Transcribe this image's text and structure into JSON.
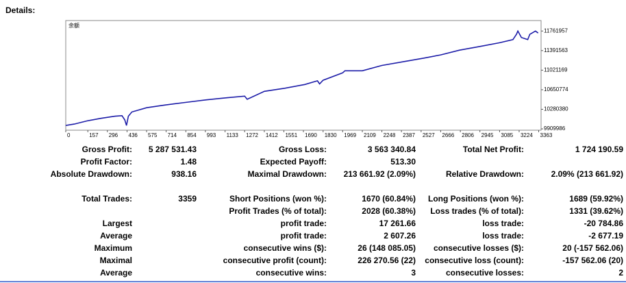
{
  "details_label": "Details:",
  "chart_data": {
    "type": "line",
    "label": "余额",
    "series": [
      {
        "color": "#1c1ca8",
        "x": [
          0,
          60,
          150,
          250,
          350,
          400,
          420,
          432,
          445,
          470,
          575,
          700,
          850,
          1000,
          1150,
          1272,
          1290,
          1412,
          1560,
          1700,
          1790,
          1805,
          1830,
          1969,
          1985,
          2109,
          2248,
          2400,
          2550,
          2666,
          2800,
          2945,
          3085,
          3180,
          3205,
          3215,
          3240,
          3285,
          3300,
          3340,
          3359
        ],
        "values": [
          9975000,
          10000000,
          10060000,
          10110000,
          10150000,
          10160000,
          10080000,
          9975000,
          10150000,
          10230000,
          10310000,
          10360000,
          10410000,
          10460000,
          10500000,
          10530000,
          10470000,
          10620000,
          10680000,
          10750000,
          10820000,
          10760000,
          10830000,
          10970000,
          11010000,
          11010000,
          11110000,
          11180000,
          11250000,
          11310000,
          11400000,
          11470000,
          11540000,
          11600000,
          11700000,
          11762000,
          11640000,
          11600000,
          11700000,
          11762000,
          11724190
        ]
      }
    ],
    "xlim": [
      0,
      3380
    ],
    "ylim": [
      9885000,
      11960000
    ],
    "xticks": [
      0,
      157,
      296,
      436,
      575,
      714,
      854,
      993,
      1133,
      1272,
      1412,
      1551,
      1690,
      1830,
      1969,
      2109,
      2248,
      2387,
      2527,
      2666,
      2806,
      2945,
      3085,
      3224,
      3363
    ],
    "yticks": [
      9909986,
      10280380,
      10650774,
      11021169,
      11391563,
      11761957
    ]
  },
  "table": {
    "rows": [
      [
        "Gross Profit:",
        "5 287 531.43",
        "Gross Loss:",
        "3 563 340.84",
        "Total Net Profit:",
        "1 724 190.59"
      ],
      [
        "Profit Factor:",
        "1.48",
        "Expected Payoff:",
        "513.30",
        null,
        null
      ],
      [
        "Absolute Drawdown:",
        "938.16",
        "Maximal Drawdown:",
        "213 661.92 (2.09%)",
        "Relative Drawdown:",
        "2.09% (213 661.92)"
      ],
      [
        "Total Trades:",
        "3359",
        "Short Positions (won %):",
        "1670 (60.84%)",
        "Long Positions (won %):",
        "1689 (59.92%)"
      ],
      [
        null,
        null,
        "Profit Trades (% of total):",
        "2028 (60.38%)",
        "Loss trades (% of total):",
        "1331 (39.62%)"
      ],
      [
        "Largest",
        null,
        "profit trade:",
        "17 261.66",
        "loss trade:",
        "-20 784.86"
      ],
      [
        "Average",
        null,
        "profit trade:",
        "2 607.26",
        "loss trade:",
        "-2 677.19"
      ],
      [
        "Maximum",
        null,
        "consecutive wins ($):",
        "26 (148 085.05)",
        "consecutive losses ($):",
        "20 (-157 562.06)"
      ],
      [
        "Maximal",
        null,
        "consecutive profit (count):",
        "226 270.56 (22)",
        "consecutive loss (count):",
        "-157 562.06 (20)"
      ],
      [
        "Average",
        null,
        "consecutive wins:",
        "3",
        "consecutive losses:",
        "2"
      ]
    ]
  }
}
